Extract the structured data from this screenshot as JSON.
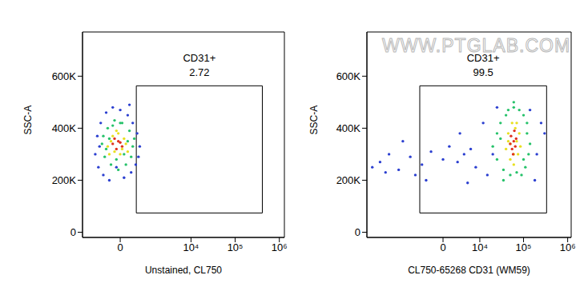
{
  "chart_data": [
    {
      "type": "scatter",
      "y_label": "SSC-A",
      "x_label": "Unstained, CL750",
      "log": "x",
      "xlim": [
        -1750,
        1300000
      ],
      "ylim": [
        -20000,
        770000
      ],
      "xticks": [
        0,
        {
          "value": 10000,
          "label": "10⁴"
        },
        {
          "value": 100000,
          "label": "10⁵"
        },
        {
          "value": 1000000,
          "label": "10⁶"
        }
      ],
      "yticks": [
        0,
        {
          "value": 200000,
          "label": "200K"
        },
        {
          "value": 400000,
          "label": "400K"
        },
        {
          "value": 600000,
          "label": "600K"
        }
      ],
      "gate": {
        "label": "CD31+",
        "value": 2.72,
        "x": [
          470,
          412000
        ],
        "y": [
          74000,
          563000
        ]
      },
      "series": [
        {
          "color": "#2b3fd0",
          "x": [
            -850,
            -700,
            -600,
            -400,
            -200,
            0,
            200,
            350,
            500,
            600,
            -750,
            -500,
            -300,
            100,
            300,
            450,
            -650,
            -100,
            250,
            550
          ],
          "y": [
            300000,
            250000,
            420000,
            460000,
            480000,
            470000,
            450000,
            420000,
            380000,
            330000,
            370000,
            220000,
            200000,
            210000,
            230000,
            260000,
            330000,
            250000,
            490000,
            290000
          ]
        },
        {
          "color": "#26c26a",
          "x": [
            -550,
            -450,
            -350,
            -250,
            -150,
            -50,
            50,
            150,
            250,
            350,
            -500,
            -300,
            -100,
            100,
            300,
            -400,
            -200,
            0,
            200,
            400
          ],
          "y": [
            340000,
            290000,
            400000,
            260000,
            430000,
            240000,
            420000,
            260000,
            390000,
            330000,
            370000,
            360000,
            280000,
            300000,
            290000,
            320000,
            410000,
            420000,
            350000,
            360000
          ]
        },
        {
          "color": "#e8e020",
          "x": [
            -350,
            -250,
            -150,
            -50,
            50,
            150,
            -300,
            -200,
            -100,
            0,
            100,
            200
          ],
          "y": [
            330000,
            350000,
            310000,
            380000,
            320000,
            340000,
            300000,
            370000,
            390000,
            300000,
            360000,
            310000
          ]
        },
        {
          "color": "#e0301e",
          "x": [
            -200,
            -100,
            0,
            -150,
            -50,
            50
          ],
          "y": [
            340000,
            320000,
            345000,
            360000,
            350000,
            330000
          ]
        }
      ]
    },
    {
      "type": "scatter",
      "y_label": "SSC-A",
      "x_label": "CL750-65268 CD31 (WM59)",
      "log": "x",
      "annotation": "WWW.PTGLAB.COM",
      "xlim": [
        -79500,
        1200000
      ],
      "ylim": [
        -20000,
        770000
      ],
      "xticks": [
        0,
        {
          "value": 10000,
          "label": "10⁴"
        },
        {
          "value": 100000,
          "label": "10⁵"
        },
        {
          "value": 1000000,
          "label": "10⁶"
        }
      ],
      "yticks": [
        0,
        {
          "value": 200000,
          "label": "200K"
        },
        {
          "value": 400000,
          "label": "400K"
        },
        {
          "value": 600000,
          "label": "600K"
        }
      ],
      "gate": {
        "label": "CD31+",
        "value": 99.5,
        "x": [
          -4600,
          333000
        ],
        "y": [
          74000,
          563000
        ]
      },
      "series": [
        {
          "color": "#2b3fd0",
          "x": [
            -60000,
            -40000,
            -25000,
            -15000,
            -8000,
            -4000,
            -2000,
            0,
            1000,
            2500,
            4000,
            6000,
            8000,
            -30000,
            -12000,
            -6000,
            3000,
            12000,
            15000,
            200000,
            250000,
            180000,
            20000,
            25000,
            140000,
            300000,
            -3000,
            5000
          ],
          "y": [
            250000,
            270000,
            300000,
            240000,
            290000,
            260000,
            310000,
            280000,
            330000,
            270000,
            300000,
            320000,
            250000,
            230000,
            350000,
            220000,
            380000,
            420000,
            220000,
            300000,
            420000,
            200000,
            300000,
            480000,
            470000,
            380000,
            200000,
            190000
          ]
        },
        {
          "color": "#26c26a",
          "x": [
            20000,
            25000,
            30000,
            35000,
            40000,
            100000,
            120000,
            130000,
            110000,
            90000,
            30000,
            45000,
            60000,
            80000,
            70000,
            50000,
            140000,
            25000,
            35000,
            120000,
            100000,
            60000
          ],
          "y": [
            330000,
            280000,
            420000,
            240000,
            450000,
            450000,
            380000,
            300000,
            250000,
            220000,
            360000,
            470000,
            480000,
            470000,
            230000,
            220000,
            340000,
            380000,
            200000,
            420000,
            280000,
            500000
          ]
        },
        {
          "color": "#e8e020",
          "x": [
            40000,
            45000,
            50000,
            55000,
            60000,
            65000,
            70000,
            75000,
            80000,
            50000,
            60000,
            70000,
            45000,
            85000
          ],
          "y": [
            320000,
            380000,
            280000,
            420000,
            300000,
            400000,
            350000,
            300000,
            380000,
            340000,
            260000,
            420000,
            350000,
            330000
          ]
        },
        {
          "color": "#e0301e",
          "x": [
            50000,
            55000,
            60000,
            65000,
            58000,
            52000,
            62000,
            68000
          ],
          "y": [
            340000,
            320000,
            350000,
            330000,
            300000,
            370000,
            390000,
            360000
          ]
        }
      ]
    }
  ]
}
